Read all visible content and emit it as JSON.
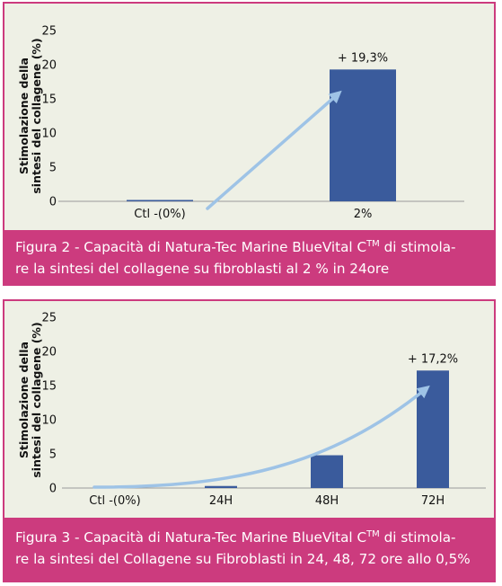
{
  "chart_data": [
    {
      "type": "bar",
      "categories": [
        "Ctl -(0%)",
        "2%"
      ],
      "values": [
        0.2,
        19.3
      ],
      "ylim": [
        0,
        25
      ],
      "yticks": [
        0,
        5,
        10,
        15,
        20,
        25
      ],
      "ylabel_line1": "Stimolazione della",
      "ylabel_line2": "sintesi del collagene (%)",
      "annotation": "+ 19,3%",
      "annotation_category": "2%",
      "bar_color": "#3a5b9c",
      "arrow_color": "#9ec3e6",
      "grid": false
    },
    {
      "type": "bar",
      "categories": [
        "Ctl -(0%)",
        "24H",
        "48H",
        "72H"
      ],
      "values": [
        0.2,
        0.3,
        4.8,
        17.2
      ],
      "ylim": [
        0,
        25
      ],
      "yticks": [
        0,
        5,
        10,
        15,
        20,
        25
      ],
      "ylabel_line1": "Stimolazione della",
      "ylabel_line2": "sintesi del collagene (%)",
      "annotation": "+ 17,2%",
      "annotation_category": "72H",
      "bar_color": "#3a5b9c",
      "arrow_color": "#9ec3e6",
      "grid": false
    }
  ],
  "captions": [
    {
      "before": "Figura 2 - Capacità di Natura-Tec Marine BlueVital C",
      "sup": "TM",
      "after": " di stimola-",
      "line2": "re la sintesi del collagene su fibroblasti al 2 % in 24ore"
    },
    {
      "before": "Figura 3 - Capacità di Natura-Tec Marine BlueVital C",
      "sup": "TM",
      "after": " di stimola-",
      "line2": "re la sintesi del Collagene su Fibroblasti in 24, 48, 72 ore allo 0,5%"
    }
  ],
  "colors": {
    "frame": "#cc3b7e",
    "panel_bg": "#eef0e5"
  }
}
